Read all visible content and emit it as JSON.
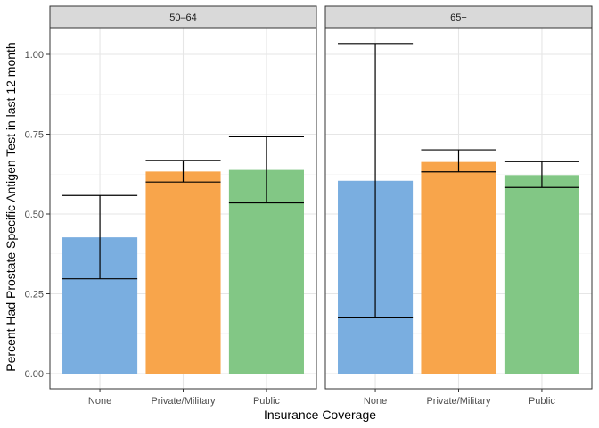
{
  "chart_data": {
    "type": "bar",
    "xlabel": "Insurance Coverage",
    "ylabel": "Percent Had Prostate Specific Antigen Test in last 12 month",
    "categories": [
      "None",
      "Private/Military",
      "Public"
    ],
    "ylim": [
      0,
      1.08
    ],
    "yticks": [
      0.0,
      0.25,
      0.5,
      0.75,
      1.0
    ],
    "ytick_labels": [
      "0.00",
      "0.25",
      "0.50",
      "0.75",
      "1.00"
    ],
    "colors": [
      "#7aaee0",
      "#f8a54b",
      "#82c785"
    ],
    "grid": true,
    "panels": [
      {
        "label": "50–64",
        "values": [
          0.427,
          0.633,
          0.638
        ],
        "error_lower": [
          0.297,
          0.6,
          0.535
        ],
        "error_upper": [
          0.558,
          0.668,
          0.742
        ]
      },
      {
        "label": "65+",
        "values": [
          0.604,
          0.663,
          0.622
        ],
        "error_lower": [
          0.175,
          0.632,
          0.583
        ],
        "error_upper": [
          1.034,
          0.701,
          0.664
        ]
      }
    ]
  }
}
